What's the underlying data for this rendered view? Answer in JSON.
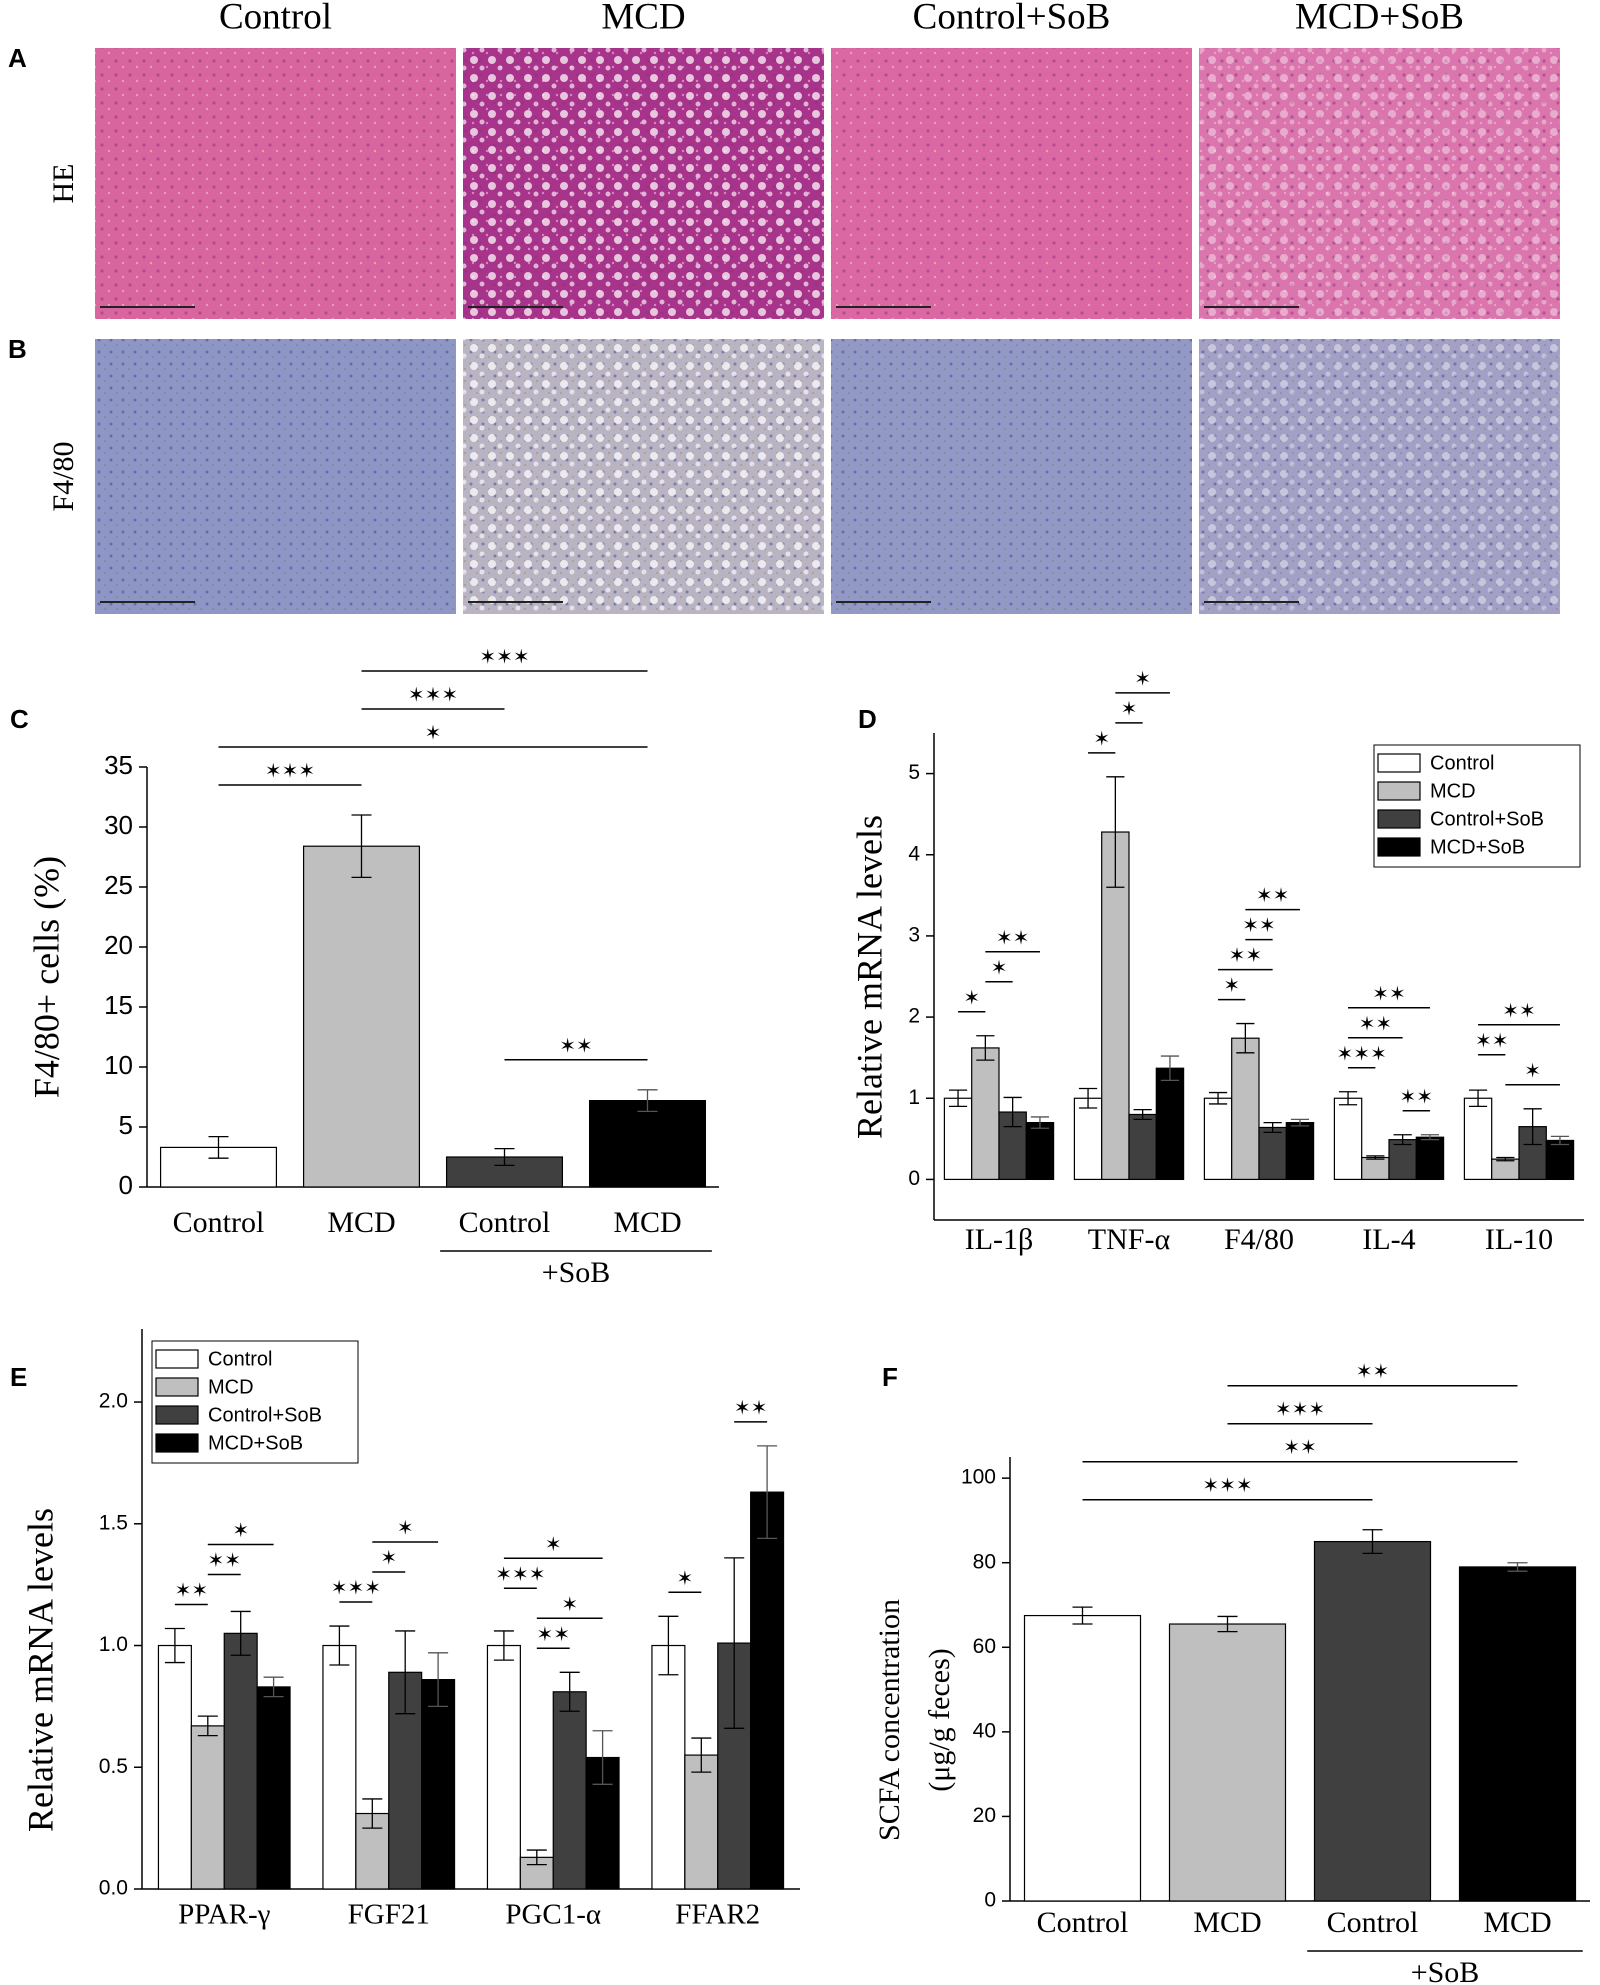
{
  "figure": {
    "columns": [
      "Control",
      "MCD",
      "Control+SoB",
      "MCD+SoB"
    ],
    "rows": [
      {
        "panel": "A",
        "label": "HE"
      },
      {
        "panel": "B",
        "label": "F4/80"
      }
    ]
  },
  "chart_data": [
    {
      "type": "bar",
      "panel": "C",
      "ylabel": "F4/80+ cells (%)",
      "categories": [
        "Control",
        "MCD",
        "Control",
        "MCD"
      ],
      "values": [
        3.3,
        28.4,
        2.5,
        7.2
      ],
      "errors": [
        0.9,
        2.6,
        0.7,
        0.9
      ],
      "colors": [
        "#ffffff",
        "#bfbfbf",
        "#404040",
        "#000000"
      ],
      "ylim": [
        0,
        35
      ],
      "yticks": [
        0,
        5,
        10,
        15,
        20,
        25,
        30,
        35
      ],
      "group_label": "+SoB",
      "group": [
        2,
        3
      ],
      "annotations": [
        {
          "from": 2,
          "to": 3,
          "text": "✶✶"
        },
        {
          "from": 0,
          "to": 1,
          "text": "✶✶✶"
        },
        {
          "from": 0,
          "to": 3,
          "text": "✶"
        },
        {
          "from": 1,
          "to": 2,
          "text": "✶✶✶"
        },
        {
          "from": 1,
          "to": 3,
          "text": "✶✶✶"
        }
      ]
    },
    {
      "type": "grouped_bar",
      "panel": "D",
      "ylabel": "Relative mRNA levels",
      "categories": [
        "IL-1β",
        "TNF-α",
        "F4/80",
        "IL-4",
        "IL-10"
      ],
      "legend": "upper right",
      "ylim": [
        -0.5,
        5.5
      ],
      "yticks": [
        0,
        1,
        2,
        3,
        4,
        5
      ],
      "series": [
        {
          "name": "Control",
          "color": "#ffffff",
          "values": [
            1,
            1,
            1,
            1,
            1
          ],
          "errors": [
            0.1,
            0.12,
            0.07,
            0.08,
            0.1
          ]
        },
        {
          "name": "MCD",
          "color": "#bfbfbf",
          "values": [
            1.62,
            4.28,
            1.74,
            0.27,
            0.25
          ],
          "errors": [
            0.15,
            0.68,
            0.18,
            0.02,
            0.02
          ]
        },
        {
          "name": "Control+SoB",
          "color": "#404040",
          "values": [
            0.83,
            0.8,
            0.64,
            0.49,
            0.65
          ],
          "errors": [
            0.18,
            0.06,
            0.06,
            0.06,
            0.22
          ]
        },
        {
          "name": "MCD+SoB",
          "color": "#000000",
          "values": [
            0.7,
            1.37,
            0.7,
            0.52,
            0.48
          ],
          "errors": [
            0.07,
            0.15,
            0.04,
            0.03,
            0.05
          ]
        }
      ],
      "annotations": [
        {
          "category": 0,
          "from": 0,
          "to": 1,
          "text": "✶"
        },
        {
          "category": 0,
          "from": 1,
          "to": 2,
          "text": "✶"
        },
        {
          "category": 0,
          "from": 1,
          "to": 3,
          "text": "✶✶"
        },
        {
          "category": 1,
          "from": 0,
          "to": 1,
          "text": "✶"
        },
        {
          "category": 1,
          "from": 1,
          "to": 2,
          "text": "✶"
        },
        {
          "category": 1,
          "from": 1,
          "to": 3,
          "text": "✶"
        },
        {
          "category": 2,
          "from": 0,
          "to": 1,
          "text": "✶"
        },
        {
          "category": 2,
          "from": 0,
          "to": 2,
          "text": "✶✶"
        },
        {
          "category": 2,
          "from": 1,
          "to": 2,
          "text": "✶✶"
        },
        {
          "category": 2,
          "from": 1,
          "to": 3,
          "text": "✶✶"
        },
        {
          "category": 3,
          "from": 2,
          "to": 3,
          "text": "✶✶"
        },
        {
          "category": 3,
          "from": 0,
          "to": 1,
          "text": "✶✶✶"
        },
        {
          "category": 3,
          "from": 0,
          "to": 2,
          "text": "✶✶"
        },
        {
          "category": 3,
          "from": 0,
          "to": 3,
          "text": "✶✶"
        },
        {
          "category": 4,
          "from": 1,
          "to": 3,
          "text": "✶"
        },
        {
          "category": 4,
          "from": 0,
          "to": 1,
          "text": "✶✶"
        },
        {
          "category": 4,
          "from": 0,
          "to": 3,
          "text": "✶✶"
        }
      ]
    },
    {
      "type": "grouped_bar",
      "panel": "E",
      "ylabel": "Relative mRNA levels",
      "categories": [
        "PPAR-γ",
        "FGF21",
        "PGC1-α",
        "FFAR2"
      ],
      "legend": "upper left",
      "ylim": [
        0,
        2.3
      ],
      "yticks": [
        {
          "value": 0,
          "label": "0.0"
        },
        0.5,
        {
          "value": 1,
          "label": "1.0"
        },
        1.5,
        {
          "value": 2,
          "label": "2.0"
        }
      ],
      "series": [
        {
          "name": "Control",
          "color": "#ffffff",
          "values": [
            1,
            1,
            1,
            1
          ],
          "errors": [
            0.07,
            0.08,
            0.06,
            0.12
          ]
        },
        {
          "name": "MCD",
          "color": "#bfbfbf",
          "values": [
            0.67,
            0.31,
            0.13,
            0.55
          ],
          "errors": [
            0.04,
            0.06,
            0.03,
            0.07
          ]
        },
        {
          "name": "Control+SoB",
          "color": "#404040",
          "values": [
            1.05,
            0.89,
            0.81,
            1.01
          ],
          "errors": [
            0.09,
            0.17,
            0.08,
            0.35
          ]
        },
        {
          "name": "MCD+SoB",
          "color": "#000000",
          "values": [
            0.83,
            0.86,
            0.54,
            1.63
          ],
          "errors": [
            0.04,
            0.11,
            0.11,
            0.19
          ]
        }
      ],
      "annotations": [
        {
          "category": 0,
          "from": 0,
          "to": 1,
          "text": "✶✶"
        },
        {
          "category": 0,
          "from": 1,
          "to": 2,
          "text": "✶✶"
        },
        {
          "category": 0,
          "from": 1,
          "to": 3,
          "text": "✶"
        },
        {
          "category": 1,
          "from": 0,
          "to": 1,
          "text": "✶✶✶"
        },
        {
          "category": 1,
          "from": 1,
          "to": 2,
          "text": "✶"
        },
        {
          "category": 1,
          "from": 1,
          "to": 3,
          "text": "✶"
        },
        {
          "category": 2,
          "from": 1,
          "to": 2,
          "text": "✶✶"
        },
        {
          "category": 2,
          "from": 1,
          "to": 3,
          "text": "✶"
        },
        {
          "category": 2,
          "from": 0,
          "to": 1,
          "text": "✶✶✶"
        },
        {
          "category": 2,
          "from": 0,
          "to": 3,
          "text": "✶"
        },
        {
          "category": 3,
          "from": 0,
          "to": 1,
          "text": "✶"
        },
        {
          "category": 3,
          "from": 2,
          "to": 3,
          "text": "✶✶"
        }
      ]
    },
    {
      "type": "bar",
      "panel": "F",
      "ylabel": [
        "SCFA concentration",
        "(μg/g feces)"
      ],
      "categories": [
        "Control",
        "MCD",
        "Control",
        "MCD"
      ],
      "values": [
        67.5,
        65.5,
        85,
        79
      ],
      "errors": [
        2,
        1.8,
        2.8,
        1
      ],
      "colors": [
        "#ffffff",
        "#bfbfbf",
        "#404040",
        "#000000"
      ],
      "ylim": [
        0,
        105
      ],
      "yticks": [
        0,
        20,
        40,
        60,
        80,
        100
      ],
      "group_label": "+SoB",
      "group": [
        2,
        3
      ],
      "annotations": [
        {
          "from": 0,
          "to": 2,
          "text": "✶✶✶"
        },
        {
          "from": 0,
          "to": 3,
          "text": "✶✶"
        },
        {
          "from": 1,
          "to": 2,
          "text": "✶✶✶"
        },
        {
          "from": 1,
          "to": 3,
          "text": "✶✶"
        }
      ]
    }
  ]
}
